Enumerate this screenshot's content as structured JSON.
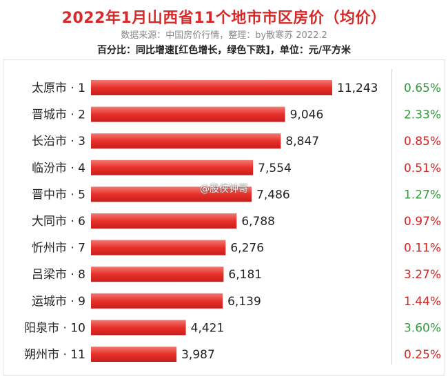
{
  "header": {
    "title": "2022年1月山西省11个地市市区房价（均价）",
    "source": "数据来源：中国房价行情，整理：by散寒苏 2022.2",
    "note": "百分比：同比增速[红色增长，绿色下跌]，单位：元/平方米"
  },
  "watermark": "@股侠钟哥",
  "colors": {
    "bar": "#e8302a",
    "increase": "#d22323",
    "decrease": "#2f9b3a"
  },
  "chart_data": {
    "type": "bar",
    "orientation": "horizontal",
    "unit": "元/平方米",
    "categories": [
      "太原市 · 1",
      "晋城市 · 2",
      "长治市 · 3",
      "临汾市 · 4",
      "晋中市 · 5",
      "大同市 · 6",
      "忻州市 · 7",
      "吕梁市 · 8",
      "运城市 · 9",
      "阳泉市 · 10",
      "朔州市 · 11"
    ],
    "values": [
      11243,
      9046,
      8847,
      7554,
      7486,
      6788,
      6276,
      6181,
      6139,
      4421,
      3987
    ],
    "value_labels": [
      "11,243",
      "9,046",
      "8,847",
      "7,554",
      "7,486",
      "6,788",
      "6,276",
      "6,181",
      "6,139",
      "4,421",
      "3,987"
    ],
    "yoy_labels": [
      "0.65%",
      "2.33%",
      "0.85%",
      "0.51%",
      "1.27%",
      "0.97%",
      "0.11%",
      "3.27%",
      "1.44%",
      "3.60%",
      "0.25%"
    ],
    "yoy_direction": [
      "down",
      "down",
      "up",
      "up",
      "down",
      "up",
      "up",
      "up",
      "up",
      "down",
      "up"
    ]
  }
}
